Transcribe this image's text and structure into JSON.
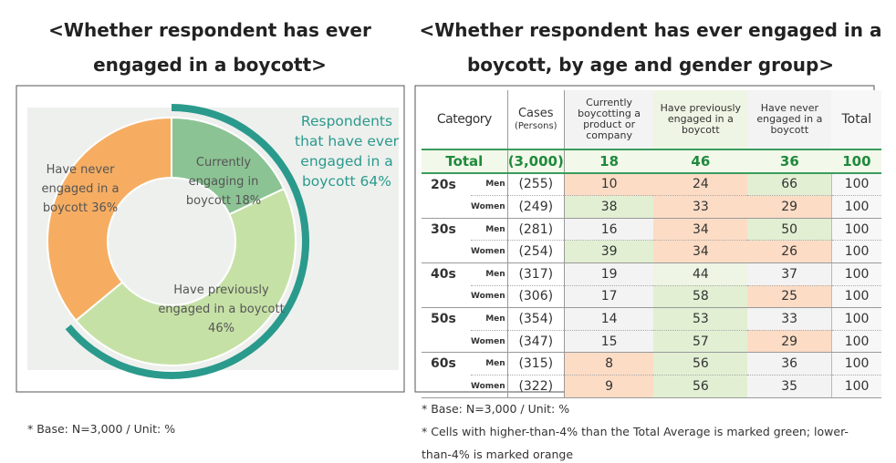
{
  "left_title": "<Whether respondent has ever engaged in a boycott>",
  "right_title": "<Whether respondent has ever engaged in a boycott, by age and gender group>",
  "chart_data": {
    "type": "donut",
    "categories": [
      "Currently engaging in boycott",
      "Have previously engaged in a boycott",
      "Have never engaged in a boycott"
    ],
    "values": [
      18,
      46,
      36
    ],
    "value_labels": [
      "18%",
      "46%",
      "36%"
    ],
    "colors": [
      "#8cc394",
      "#c6e1a6",
      "#f6ad62"
    ],
    "annotation": "Respondents that have ever engaged in a boycott 64%",
    "annotation_color": "#2a9a8c"
  },
  "left_note": "* Base: N=3,000 / Unit: %",
  "table": {
    "header": {
      "category": "Category",
      "cases": "Cases",
      "cases_unit": "(Persons)",
      "columns": [
        "Currently boycotting a product or company",
        "Have previously engaged in a boycott",
        "Have never engaged in a boycott",
        "Total"
      ]
    },
    "highlight_colors": {
      "green": "#e2efd3",
      "orange": "#fcdcc5"
    },
    "total_row": {
      "label": "Total",
      "cases": "(3,000)",
      "values": [
        18,
        46,
        36,
        100
      ]
    },
    "groups": [
      {
        "label": "20s",
        "rows": [
          {
            "sex": "Men",
            "cases": "(255)",
            "values": [
              10,
              24,
              66,
              100
            ],
            "highlight": [
              "orange",
              "orange",
              "green",
              null
            ]
          },
          {
            "sex": "Women",
            "cases": "(249)",
            "values": [
              38,
              33,
              29,
              100
            ],
            "highlight": [
              "green",
              "orange",
              "orange",
              null
            ]
          }
        ]
      },
      {
        "label": "30s",
        "rows": [
          {
            "sex": "Men",
            "cases": "(281)",
            "values": [
              16,
              34,
              50,
              100
            ],
            "highlight": [
              null,
              "orange",
              "green",
              null
            ]
          },
          {
            "sex": "Women",
            "cases": "(254)",
            "values": [
              39,
              34,
              26,
              100
            ],
            "highlight": [
              "green",
              "orange",
              "orange",
              null
            ]
          }
        ]
      },
      {
        "label": "40s",
        "rows": [
          {
            "sex": "Men",
            "cases": "(317)",
            "values": [
              19,
              44,
              37,
              100
            ],
            "highlight": [
              null,
              null,
              null,
              null
            ]
          },
          {
            "sex": "Women",
            "cases": "(306)",
            "values": [
              17,
              58,
              25,
              100
            ],
            "highlight": [
              null,
              "green",
              "orange",
              null
            ]
          }
        ]
      },
      {
        "label": "50s",
        "rows": [
          {
            "sex": "Men",
            "cases": "(354)",
            "values": [
              14,
              53,
              33,
              100
            ],
            "highlight": [
              null,
              "green",
              null,
              null
            ]
          },
          {
            "sex": "Women",
            "cases": "(347)",
            "values": [
              15,
              57,
              29,
              100
            ],
            "highlight": [
              null,
              "green",
              "orange",
              null
            ]
          }
        ]
      },
      {
        "label": "60s",
        "rows": [
          {
            "sex": "Men",
            "cases": "(315)",
            "values": [
              8,
              56,
              36,
              100
            ],
            "highlight": [
              "orange",
              "green",
              null,
              null
            ]
          },
          {
            "sex": "Women",
            "cases": "(322)",
            "values": [
              9,
              56,
              35,
              100
            ],
            "highlight": [
              "orange",
              "green",
              null,
              null
            ]
          }
        ]
      }
    ]
  },
  "right_notes": [
    "* Base: N=3,000 / Unit: %",
    "* Cells with higher-than-4% than the Total Average is marked green; lower-than-4% is marked orange"
  ]
}
